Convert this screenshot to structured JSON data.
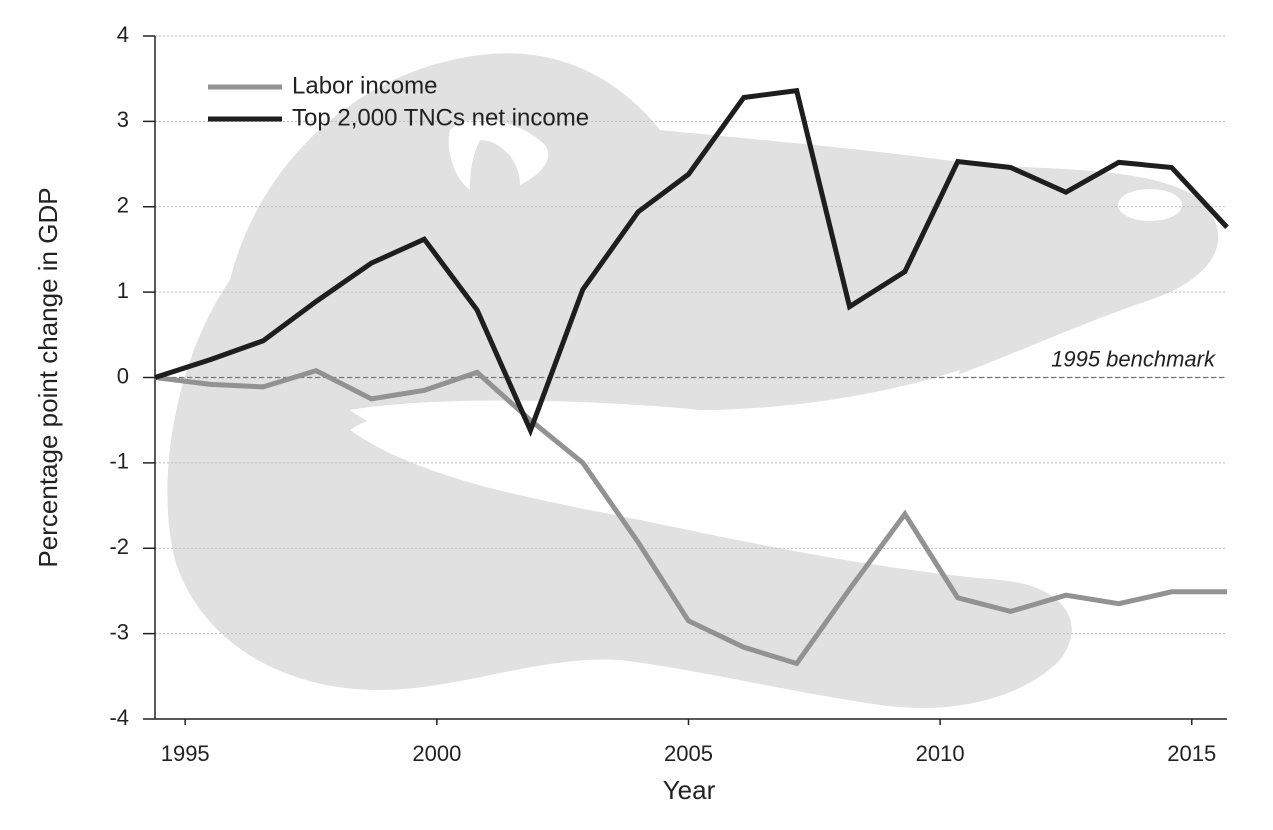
{
  "chart_data": {
    "type": "line",
    "x_label": "Year",
    "y_label": "Percentage point change in GDP",
    "x": [
      1994.4,
      1995.5,
      1996.55,
      1997.6,
      1998.7,
      1999.75,
      2000.8,
      2001.86,
      2002.9,
      2004.0,
      2005.0,
      2006.1,
      2007.15,
      2008.2,
      2009.3,
      2010.35,
      2011.4,
      2012.5,
      2013.55,
      2014.6,
      2015.7
    ],
    "series": [
      {
        "name": "Labor income",
        "color": "#929292",
        "values": [
          0,
          -0.08,
          -0.11,
          0.08,
          -0.25,
          -0.15,
          0.06,
          -0.5,
          -1.0,
          -1.93,
          -2.85,
          -3.16,
          -3.35,
          -2.48,
          -1.6,
          -2.58,
          -2.74,
          -2.55,
          -2.65,
          -2.51,
          -2.51
        ]
      },
      {
        "name": "Top 2,000 TNCs net income",
        "color": "#1e1e1e",
        "values": [
          0,
          0.21,
          0.43,
          0.89,
          1.34,
          1.62,
          0.79,
          -0.62,
          1.03,
          1.94,
          2.38,
          3.28,
          3.36,
          0.83,
          1.24,
          2.53,
          2.46,
          2.17,
          2.52,
          2.46,
          1.76
        ]
      }
    ],
    "xlim": [
      1994.4,
      2015.7
    ],
    "xticks": [
      1995,
      2000,
      2005,
      2010,
      2015
    ],
    "ylim": [
      -4,
      4
    ],
    "yticks": [
      -4,
      -3,
      -2,
      -1,
      0,
      1,
      2,
      3,
      4
    ],
    "grid": true,
    "benchmark": {
      "value": 0,
      "label": "1995 benchmark"
    },
    "legend": "upper left"
  }
}
